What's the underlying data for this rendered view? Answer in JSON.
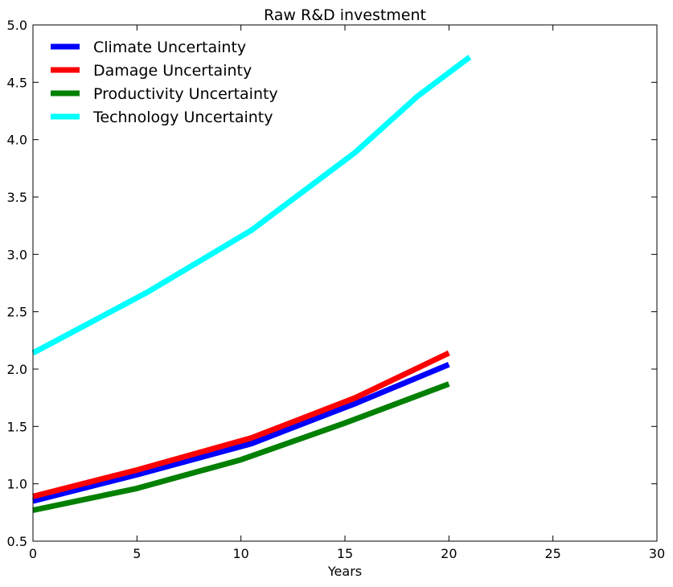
{
  "chart_data": {
    "type": "line",
    "title": "Raw R&D investment",
    "xlabel": "Years",
    "ylabel": "",
    "xlim": [
      0,
      30
    ],
    "ylim": [
      0.5,
      5.0
    ],
    "xticks": [
      0,
      5,
      10,
      15,
      20,
      25,
      30
    ],
    "yticks": [
      0.5,
      1.0,
      1.5,
      2.0,
      2.5,
      3.0,
      3.5,
      4.0,
      4.5,
      5.0
    ],
    "xtick_labels": [
      "0",
      "5",
      "10",
      "15",
      "20",
      "25",
      "30"
    ],
    "ytick_labels": [
      "0.5",
      "1.0",
      "1.5",
      "2.0",
      "2.5",
      "3.0",
      "3.5",
      "4.0",
      "4.5",
      "5.0"
    ],
    "grid": false,
    "legend_position": "top-left",
    "series": [
      {
        "name": "Climate Uncertainty",
        "color": "#0000ff",
        "x": [
          0,
          5,
          10.5,
          15.5,
          20
        ],
        "y": [
          0.85,
          1.08,
          1.35,
          1.7,
          2.04
        ]
      },
      {
        "name": "Damage Uncertainty",
        "color": "#ff0000",
        "x": [
          0,
          5,
          10.5,
          15.5,
          20
        ],
        "y": [
          0.89,
          1.12,
          1.4,
          1.75,
          2.14
        ]
      },
      {
        "name": "Productivity Uncertainty",
        "color": "#008000",
        "x": [
          0,
          5,
          10,
          15,
          20
        ],
        "y": [
          0.77,
          0.96,
          1.21,
          1.53,
          1.87
        ]
      },
      {
        "name": "Technology Uncertainty",
        "color": "#00ffff",
        "x": [
          0,
          5.5,
          10.5,
          15.5,
          18.5,
          21
        ],
        "y": [
          2.14,
          2.67,
          3.21,
          3.89,
          4.38,
          4.72
        ]
      }
    ]
  }
}
